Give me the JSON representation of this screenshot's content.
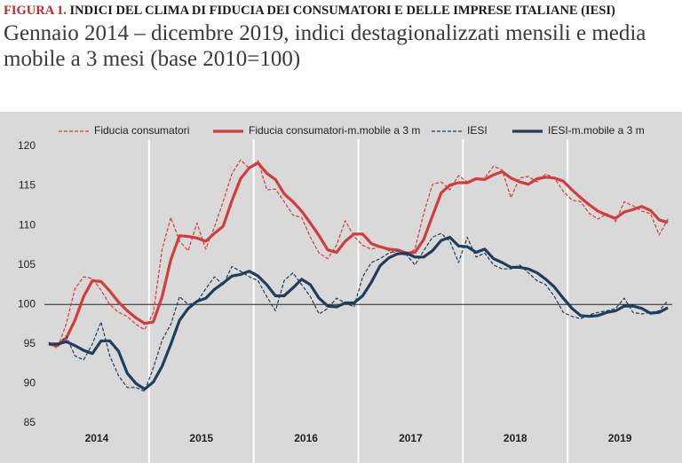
{
  "header": {
    "figure_label": "FIGURA 1.",
    "title": "INDICI DEL CLIMA DI FIDUCIA DEI CONSUMATORI E DELLE IMPRESE ITALIANE (IESI)",
    "subtitle": "Gennaio 2014 – dicembre 2019, indici destagionalizzati mensili e media mobile a 3 mesi (base 2010=100)"
  },
  "chart_data": {
    "type": "line",
    "categories": [
      null,
      null,
      null,
      null,
      null,
      "2014",
      null,
      null,
      null,
      null,
      null,
      null,
      null,
      null,
      null,
      null,
      null,
      "2015",
      null,
      null,
      null,
      null,
      null,
      null,
      null,
      null,
      null,
      null,
      null,
      "2016",
      null,
      null,
      null,
      null,
      null,
      null,
      null,
      null,
      null,
      null,
      null,
      "2017",
      null,
      null,
      null,
      null,
      null,
      null,
      null,
      null,
      null,
      null,
      null,
      "2018",
      null,
      null,
      null,
      null,
      null,
      null,
      null,
      null,
      null,
      null,
      null,
      "2019",
      null,
      null,
      null,
      null,
      null,
      null
    ],
    "series": [
      {
        "name": "Fiducia consumatori",
        "color": "#d23c3c",
        "line_style": "dashed",
        "values": [
          95.0,
          94.5,
          97.5,
          102.0,
          103.5,
          103.3,
          101.8,
          100.0,
          99.0,
          98.5,
          97.5,
          96.8,
          99.0,
          107.0,
          111.0,
          108.0,
          106.8,
          110.3,
          107.0,
          109.8,
          113.0,
          116.5,
          118.3,
          117.2,
          118.2,
          114.5,
          114.6,
          113.0,
          111.3,
          111.0,
          108.5,
          106.5,
          105.8,
          107.5,
          110.6,
          108.6,
          107.5,
          107.0,
          107.3,
          106.8,
          106.5,
          106.2,
          107.0,
          111.5,
          115.2,
          115.5,
          114.5,
          116.3,
          115.5,
          115.8,
          116.0,
          117.5,
          117.0,
          113.5,
          116.0,
          116.2,
          115.5,
          116.5,
          116.0,
          114.3,
          113.2,
          113.0,
          111.5,
          110.8,
          111.5,
          110.5,
          113.0,
          112.5,
          111.8,
          111.5,
          108.8,
          110.8
        ]
      },
      {
        "name": "Fiducia consumatori-m.mobile a 3 m",
        "color": "#d23c3c",
        "line_style": "solid",
        "values": [
          95.0,
          94.8,
          95.7,
          98.0,
          101.0,
          103.0,
          102.9,
          101.7,
          100.3,
          99.2,
          98.3,
          97.6,
          97.8,
          101.0,
          105.7,
          108.7,
          108.6,
          108.4,
          108.0,
          109.0,
          109.9,
          113.1,
          115.9,
          117.3,
          117.9,
          116.6,
          115.8,
          114.0,
          113.0,
          111.8,
          110.3,
          108.7,
          106.9,
          106.6,
          108.0,
          108.9,
          108.9,
          107.7,
          107.3,
          107.0,
          106.9,
          106.5,
          106.6,
          108.2,
          111.2,
          114.1,
          115.1,
          115.4,
          115.4,
          115.9,
          115.8,
          116.4,
          116.8,
          116.0,
          115.5,
          115.2,
          115.9,
          116.1,
          116.0,
          115.6,
          114.5,
          113.5,
          112.6,
          111.8,
          111.3,
          110.9,
          111.7,
          112.0,
          112.4,
          111.9,
          110.7,
          110.4
        ]
      },
      {
        "name": "IESI",
        "color": "#1f3d5c",
        "line_style": "dashed",
        "values": [
          95.2,
          94.8,
          96.0,
          93.5,
          93.0,
          95.0,
          97.8,
          93.5,
          91.0,
          89.5,
          89.5,
          89.0,
          92.0,
          95.5,
          97.5,
          101.0,
          100.0,
          100.3,
          102.0,
          103.5,
          102.5,
          104.8,
          104.2,
          103.5,
          103.0,
          101.0,
          99.2,
          103.0,
          104.0,
          102.5,
          101.0,
          98.8,
          99.5,
          100.8,
          100.2,
          99.7,
          103.5,
          105.3,
          105.8,
          106.5,
          106.8,
          106.3,
          105.0,
          106.8,
          108.5,
          109.0,
          108.0,
          105.3,
          108.5,
          106.0,
          106.5,
          105.0,
          104.5,
          104.5,
          105.0,
          104.0,
          103.0,
          102.5,
          101.0,
          99.0,
          98.5,
          98.2,
          98.7,
          99.0,
          99.2,
          99.5,
          100.8,
          99.0,
          98.8,
          99.0,
          99.2,
          100.5
        ]
      },
      {
        "name": "IESI-m.mobile a 3 m",
        "color": "#1f3d5c",
        "line_style": "solid",
        "values": [
          95.0,
          95.0,
          95.3,
          94.8,
          94.2,
          93.8,
          95.4,
          95.4,
          94.1,
          91.3,
          90.0,
          89.3,
          90.2,
          92.2,
          95.0,
          98.0,
          99.5,
          100.4,
          100.8,
          101.9,
          102.7,
          103.6,
          103.8,
          104.2,
          103.6,
          102.5,
          101.1,
          101.1,
          102.1,
          103.2,
          102.5,
          100.8,
          99.8,
          99.7,
          100.2,
          100.2,
          101.1,
          102.8,
          104.9,
          105.9,
          106.4,
          106.5,
          106.0,
          106.0,
          106.8,
          108.1,
          108.5,
          107.4,
          107.3,
          106.6,
          107.0,
          105.8,
          105.3,
          104.7,
          104.7,
          104.5,
          104.0,
          103.2,
          102.2,
          100.8,
          99.5,
          98.6,
          98.5,
          98.6,
          99.0,
          99.2,
          99.8,
          99.8,
          99.5,
          98.9,
          99.0,
          99.6
        ]
      }
    ],
    "ylim": [
      85,
      120
    ],
    "yticks": [
      85,
      90,
      95,
      100,
      105,
      110,
      115,
      120
    ],
    "reference_line": 100,
    "grid": false,
    "legend": "top"
  }
}
